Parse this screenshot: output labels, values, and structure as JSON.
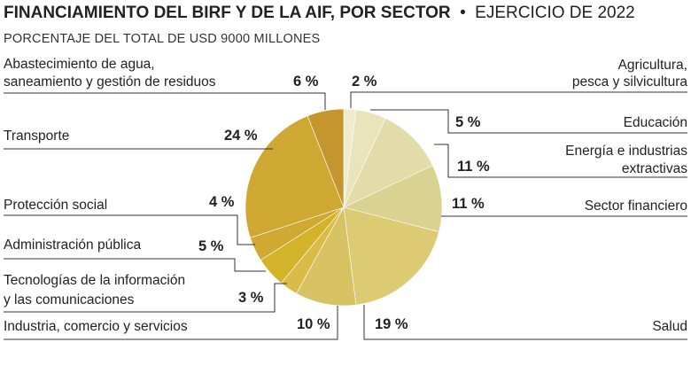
{
  "chart_data": {
    "type": "pie",
    "title": "FINANCIAMIENTO DEL BIRF Y DE LA AIF, POR SECTOR",
    "title_separator": "•",
    "title_suffix": "EJERCICIO DE 2022",
    "subtitle": "PORCENTAJE DEL TOTAL DE USD 9000 MILLONES",
    "slices": [
      {
        "name": "Agricultura, pesca y silvicultura",
        "lines": [
          "Agricultura,",
          "pesca y silvicultura"
        ],
        "value": 2,
        "label": "2 %",
        "color": "#efebcf"
      },
      {
        "name": "Educación",
        "lines": [
          "Educación"
        ],
        "value": 5,
        "label": "5 %",
        "color": "#e9e4bc"
      },
      {
        "name": "Energía e industrias extractivas",
        "lines": [
          "Energía e industrias",
          "extractivas"
        ],
        "value": 11,
        "label": "11 %",
        "color": "#e2dca8"
      },
      {
        "name": "Sector financiero",
        "lines": [
          "Sector financiero"
        ],
        "value": 11,
        "label": "11 %",
        "color": "#d9d290"
      },
      {
        "name": "Salud",
        "lines": [
          "Salud"
        ],
        "value": 19,
        "label": "19 %",
        "color": "#dccb72"
      },
      {
        "name": "Industria, comercio y servicios",
        "lines": [
          "Industria, comercio y servicios"
        ],
        "value": 10,
        "label": "10 %",
        "color": "#d7c364"
      },
      {
        "name": "Tecnologías de la información y las comunicaciones",
        "lines": [
          "Tecnologías de la información",
          "y las comunicaciones"
        ],
        "value": 3,
        "label": "3 %",
        "color": "#dbbb48"
      },
      {
        "name": "Administración pública",
        "lines": [
          "Administración pública"
        ],
        "value": 5,
        "label": "5 %",
        "color": "#d4b22a"
      },
      {
        "name": "Protección social",
        "lines": [
          "Protección social"
        ],
        "value": 4,
        "label": "4 %",
        "color": "#d0a932"
      },
      {
        "name": "Transporte",
        "lines": [
          "Transporte"
        ],
        "value": 24,
        "label": "24 %",
        "color": "#cfa834"
      },
      {
        "name": "Abastecimiento de agua, saneamiento y gestión de residuos",
        "lines": [
          "Abastecimiento de agua,",
          "saneamiento y gestión de residuos"
        ],
        "value": 6,
        "label": "6 %",
        "color": "#c5962e"
      }
    ]
  }
}
